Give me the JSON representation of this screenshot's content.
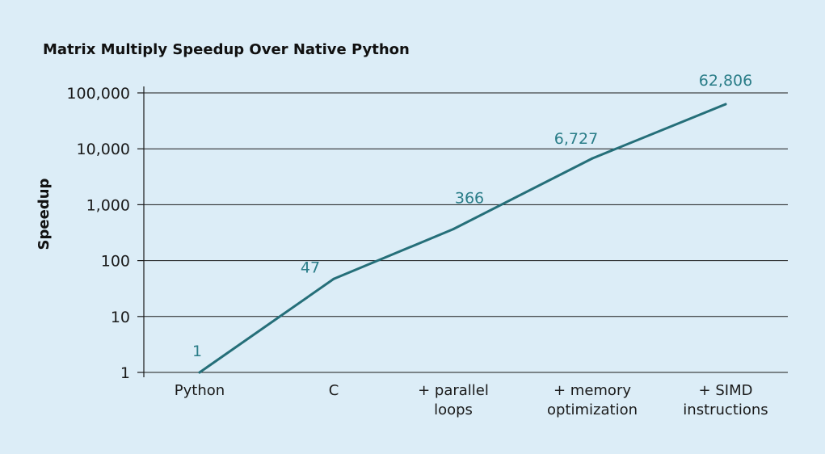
{
  "chart_data": {
    "type": "line",
    "title": "Matrix Multiply Speedup Over Native Python",
    "xlabel": "",
    "ylabel": "Speedup",
    "yscale": "log",
    "ylim": [
      1,
      100000
    ],
    "yticks": [
      1,
      10,
      100,
      1000,
      10000,
      100000
    ],
    "ytick_labels": [
      "1",
      "10",
      "100",
      "1,000",
      "10,000",
      "100,000"
    ],
    "categories": [
      [
        "Python"
      ],
      [
        "C"
      ],
      [
        "+ parallel",
        "loops"
      ],
      [
        "+ memory",
        "optimization"
      ],
      [
        "+ SIMD",
        "instructions"
      ]
    ],
    "series": [
      {
        "name": "Speedup",
        "values": [
          1,
          47,
          366,
          6727,
          62806
        ],
        "labels": [
          "1",
          "47",
          "366",
          "6,727",
          "62,806"
        ]
      }
    ],
    "grid": true,
    "colors": {
      "background": "#dcedf7",
      "line": "#256f79",
      "label": "#2a7d88",
      "grid": "#1a1a1a",
      "text": "#111111"
    }
  }
}
